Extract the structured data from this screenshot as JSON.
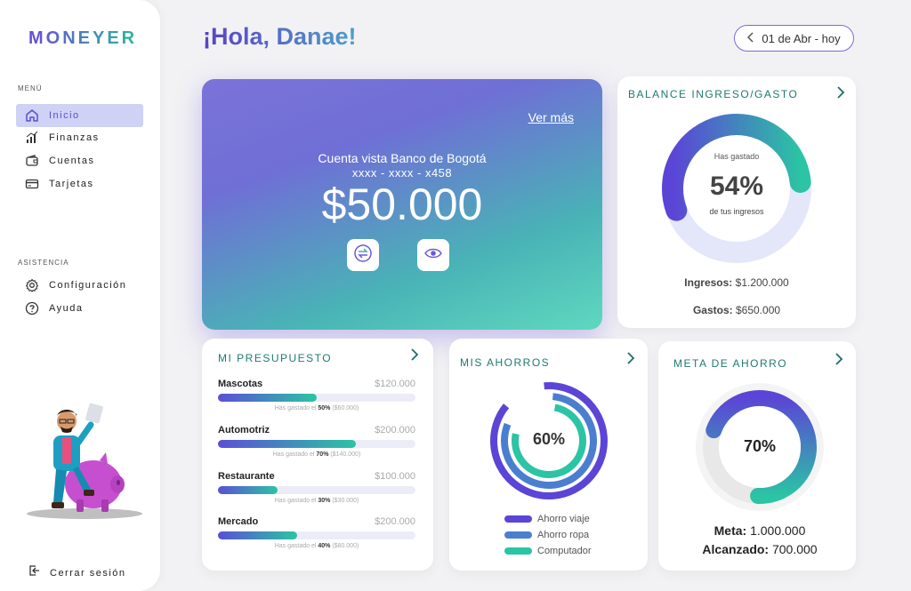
{
  "app": {
    "logo": "MONEYER"
  },
  "sidebar": {
    "menu_title": "MENÚ",
    "menu_items": [
      {
        "label": "Inicio",
        "icon": "home-icon",
        "active": true
      },
      {
        "label": "Finanzas",
        "icon": "chart-icon",
        "active": false
      },
      {
        "label": "Cuentas",
        "icon": "wallet-icon",
        "active": false
      },
      {
        "label": "Tarjetas",
        "icon": "card-icon",
        "active": false
      }
    ],
    "assist_title": "ASISTENCIA",
    "assist_items": [
      {
        "label": "Configuración",
        "icon": "gear-icon"
      },
      {
        "label": "Ayuda",
        "icon": "help-icon"
      }
    ],
    "logout_label": "Cerrar sesión"
  },
  "header": {
    "greeting": "¡Hola, Danae!",
    "date_range": "01 de Abr - hoy"
  },
  "account": {
    "see_more": "Ver más",
    "name": "Cuenta vista Banco de Bogotá",
    "number": "xxxx - xxxx - x458",
    "balance": "$50.000"
  },
  "balance_card": {
    "title": "BALANCE INGRESO/GASTO",
    "top_label": "Has gastado",
    "percent": "54%",
    "percent_value": 54,
    "bottom_label": "de tus ingresos",
    "income_label": "Ingresos:",
    "income_value": "$1.200.000",
    "expense_label": "Gastos:",
    "expense_value": "$650.000"
  },
  "budget": {
    "title": "MI PRESUPUESTO",
    "spent_prefix": "Has gastado el",
    "items": [
      {
        "name": "Mascotas",
        "amount": "$120.000",
        "pct_text": "50%",
        "pct": 50,
        "spent": "($60.000)"
      },
      {
        "name": "Automotriz",
        "amount": "$200.000",
        "pct_text": "70%",
        "pct": 70,
        "spent": "($140.000)"
      },
      {
        "name": "Restaurante",
        "amount": "$100.000",
        "pct_text": "30%",
        "pct": 30,
        "spent": "($30.000)"
      },
      {
        "name": "Mercado",
        "amount": "$200.000",
        "pct_text": "40%",
        "pct": 40,
        "spent": "($80.000)"
      }
    ]
  },
  "savings": {
    "title": "MIS AHORROS",
    "center": "60%",
    "legend": [
      {
        "label": "Ahorro viaje",
        "color": "#5b45d6"
      },
      {
        "label": "Ahorro ropa",
        "color": "#4a7fd0"
      },
      {
        "label": "Computador",
        "color": "#2bc4a4"
      }
    ]
  },
  "goal": {
    "title": "META DE AHORRO",
    "percent": "70%",
    "percent_value": 70,
    "target_label": "Meta:",
    "target_value": "1.000.000",
    "reached_label": "Alcanzado:",
    "reached_value": "700.000"
  },
  "colors": {
    "primary": "#5b45d6",
    "accent": "#2bc4a4",
    "active_bg": "#cfd2f5"
  }
}
